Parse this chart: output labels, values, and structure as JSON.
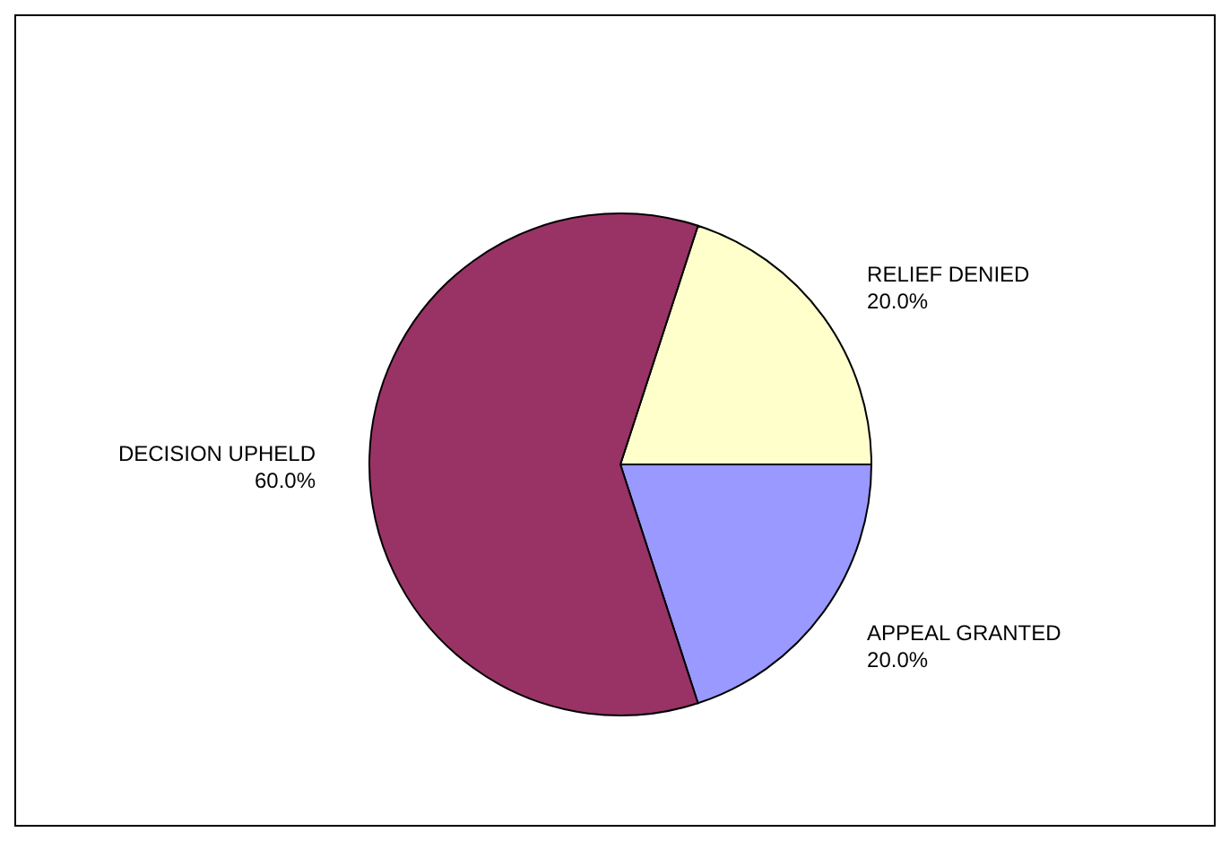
{
  "chart_data": {
    "type": "pie",
    "categories": [
      "RELIEF DENIED",
      "APPEAL GRANTED",
      "DECISION UPHELD"
    ],
    "values": [
      20,
      20,
      60
    ],
    "colors": [
      "#ffffcc",
      "#9999ff",
      "#993366"
    ],
    "value_labels": [
      "20.0%",
      "20.0%",
      "60.0%"
    ],
    "legend": false
  }
}
